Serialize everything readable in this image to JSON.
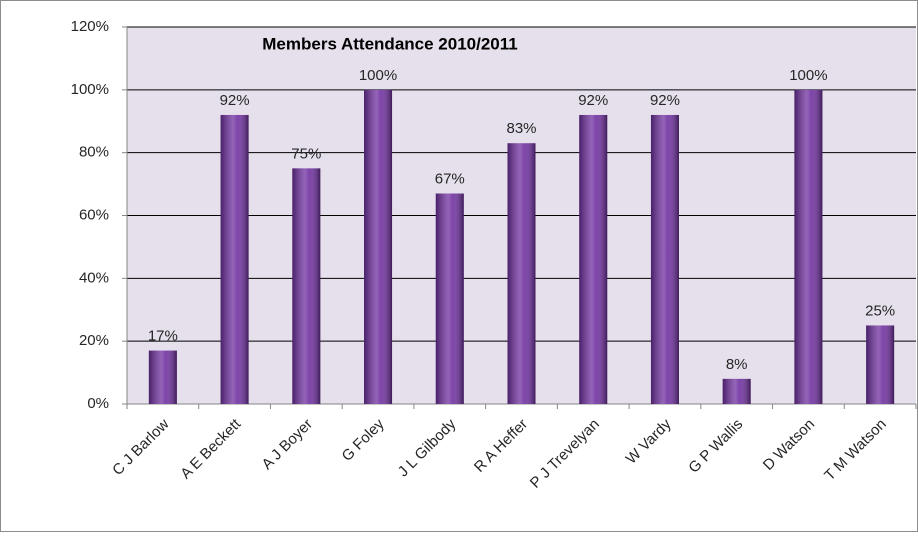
{
  "chart_data": {
    "type": "bar",
    "title": "Members Attendance 2010/2011",
    "categories": [
      "C J Barlow",
      "A E Beckett",
      "A J Boyer",
      "G Foley",
      "J L Gilbody",
      "R A Heffer",
      "P J Trevelyan",
      "W Vardy",
      "G P Wallis",
      "D Watson",
      "T M Watson"
    ],
    "values": [
      17,
      92,
      75,
      100,
      67,
      83,
      92,
      92,
      8,
      100,
      25
    ],
    "value_labels": [
      "17%",
      "92%",
      "75%",
      "100%",
      "67%",
      "83%",
      "92%",
      "92%",
      "8%",
      "100%",
      "25%"
    ],
    "color": "#7030a0",
    "ylim": [
      0,
      120
    ],
    "yticks": [
      {
        "value": 0,
        "label": "0%"
      },
      {
        "value": 20,
        "label": "20%"
      },
      {
        "value": 40,
        "label": "40%"
      },
      {
        "value": 60,
        "label": "60%"
      },
      {
        "value": 80,
        "label": "80%"
      },
      {
        "value": 100,
        "label": "100%"
      },
      {
        "value": 120,
        "label": "120%"
      }
    ],
    "grid": true
  }
}
